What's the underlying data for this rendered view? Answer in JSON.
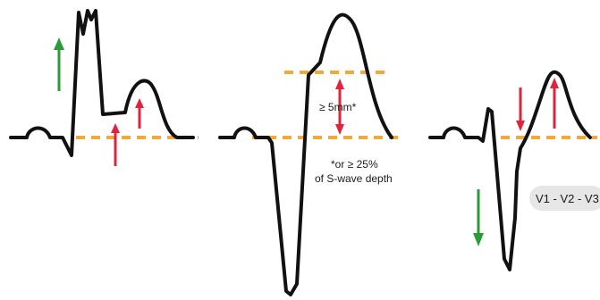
{
  "annotations": {
    "threshold": "≥ 5mm*",
    "footnote_line1": "*or ≥ 25%",
    "footnote_line2": "of S-wave depth",
    "leads": "V1 - V2 - V3"
  },
  "colors": {
    "ecg_trace": "#111111",
    "baseline": "#f2a93b",
    "elevation_arrow": "#e1243b",
    "direction_arrow": "#2b9b3a",
    "lead_badge": "#e6e6e6"
  },
  "icons": {
    "up_arrow": "arrow-up-icon",
    "down_arrow": "arrow-down-icon"
  }
}
